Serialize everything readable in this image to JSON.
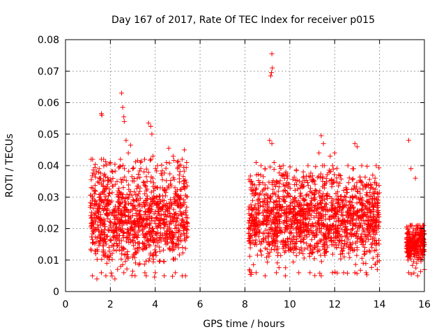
{
  "chart_data": {
    "type": "scatter",
    "title": "Day 167 of 2017, Rate Of TEC Index for receiver p015",
    "xlabel": "GPS time / hours",
    "ylabel": "ROTI / TECUs",
    "xlim": [
      0,
      16
    ],
    "ylim": [
      0,
      0.08
    ],
    "x_ticks": [
      0,
      2,
      4,
      6,
      8,
      10,
      12,
      14,
      16
    ],
    "x_tick_labels": [
      "0",
      "2",
      "4",
      "6",
      "8",
      "10",
      "12",
      "14",
      "16"
    ],
    "y_ticks": [
      0,
      0.01,
      0.02,
      0.03,
      0.04,
      0.05,
      0.06,
      0.07,
      0.08
    ],
    "y_tick_labels": [
      "0",
      "0.01",
      "0.02",
      "0.03",
      "0.04",
      "0.05",
      "0.06",
      "0.07",
      "0.08"
    ],
    "grid": true,
    "marker": "+",
    "marker_color": "#ff0000",
    "series": [
      {
        "name": "p015",
        "points": [
          [
            1.6,
            0.0565
          ],
          [
            1.62,
            0.056
          ],
          [
            2.5,
            0.063
          ],
          [
            2.55,
            0.0585
          ],
          [
            2.6,
            0.0555
          ],
          [
            2.62,
            0.054
          ],
          [
            2.7,
            0.048
          ],
          [
            2.9,
            0.0465
          ],
          [
            3.7,
            0.0535
          ],
          [
            3.8,
            0.0525
          ],
          [
            3.85,
            0.05
          ],
          [
            4.6,
            0.0455
          ],
          [
            5.3,
            0.045
          ],
          [
            9.2,
            0.0755
          ],
          [
            9.22,
            0.071
          ],
          [
            9.18,
            0.0695
          ],
          [
            9.15,
            0.0685
          ],
          [
            9.1,
            0.048
          ],
          [
            9.2,
            0.047
          ],
          [
            11.4,
            0.0495
          ],
          [
            11.5,
            0.047
          ],
          [
            12.9,
            0.047
          ],
          [
            13.0,
            0.046
          ],
          [
            15.3,
            0.048
          ],
          [
            1.15,
            0.033
          ],
          [
            1.3,
            0.031
          ],
          [
            1.5,
            0.036
          ],
          [
            1.7,
            0.042
          ],
          [
            1.9,
            0.029
          ],
          [
            2.0,
            0.041
          ],
          [
            2.1,
            0.038
          ],
          [
            2.3,
            0.035
          ],
          [
            2.45,
            0.042
          ],
          [
            2.8,
            0.044
          ],
          [
            3.0,
            0.039
          ],
          [
            3.2,
            0.036
          ],
          [
            3.5,
            0.038
          ],
          [
            3.9,
            0.043
          ],
          [
            4.1,
            0.04
          ],
          [
            4.3,
            0.037
          ],
          [
            4.5,
            0.041
          ],
          [
            4.8,
            0.043
          ],
          [
            5.0,
            0.039
          ],
          [
            5.2,
            0.042
          ],
          [
            5.4,
            0.041
          ],
          [
            8.3,
            0.035
          ],
          [
            8.5,
            0.041
          ],
          [
            8.7,
            0.037
          ],
          [
            8.9,
            0.039
          ],
          [
            9.3,
            0.041
          ],
          [
            9.6,
            0.039
          ],
          [
            9.9,
            0.036
          ],
          [
            10.3,
            0.034
          ],
          [
            10.6,
            0.038
          ],
          [
            11.0,
            0.035
          ],
          [
            11.3,
            0.044
          ],
          [
            11.8,
            0.043
          ],
          [
            12.0,
            0.044
          ],
          [
            12.2,
            0.037
          ],
          [
            12.5,
            0.033
          ],
          [
            12.8,
            0.039
          ],
          [
            13.2,
            0.029
          ],
          [
            13.5,
            0.034
          ],
          [
            13.8,
            0.036
          ],
          [
            15.4,
            0.039
          ],
          [
            15.6,
            0.036
          ],
          [
            15.8,
            0.021
          ],
          [
            15.9,
            0.019
          ],
          [
            1.2,
            0.005
          ],
          [
            1.4,
            0.004
          ],
          [
            1.6,
            0.006
          ],
          [
            1.8,
            0.005
          ],
          [
            2.2,
            0.004
          ],
          [
            2.6,
            0.006
          ],
          [
            3.1,
            0.005
          ],
          [
            3.6,
            0.005
          ],
          [
            4.0,
            0.006
          ],
          [
            4.4,
            0.005
          ],
          [
            4.9,
            0.006
          ],
          [
            5.35,
            0.005
          ],
          [
            8.2,
            0.007
          ],
          [
            8.5,
            0.006
          ],
          [
            8.9,
            0.005
          ],
          [
            9.4,
            0.006
          ],
          [
            9.8,
            0.005
          ],
          [
            10.4,
            0.006
          ],
          [
            10.9,
            0.006
          ],
          [
            11.4,
            0.005
          ],
          [
            11.9,
            0.006
          ],
          [
            12.4,
            0.006
          ],
          [
            12.9,
            0.006
          ],
          [
            13.4,
            0.006
          ],
          [
            13.9,
            0.007
          ],
          [
            15.3,
            0.006
          ],
          [
            15.7,
            0.005
          ],
          [
            16.0,
            0.007
          ]
        ]
      }
    ],
    "segments": [
      {
        "x_start": 1.1,
        "x_end": 5.45,
        "y_low": 0.004,
        "y_high": 0.042,
        "density": 1100
      },
      {
        "x_start": 8.15,
        "x_end": 14.0,
        "y_low": 0.005,
        "y_high": 0.04,
        "density": 1500
      },
      {
        "x_start": 15.2,
        "x_end": 16.0,
        "y_low": 0.005,
        "y_high": 0.021,
        "density": 250
      }
    ]
  }
}
